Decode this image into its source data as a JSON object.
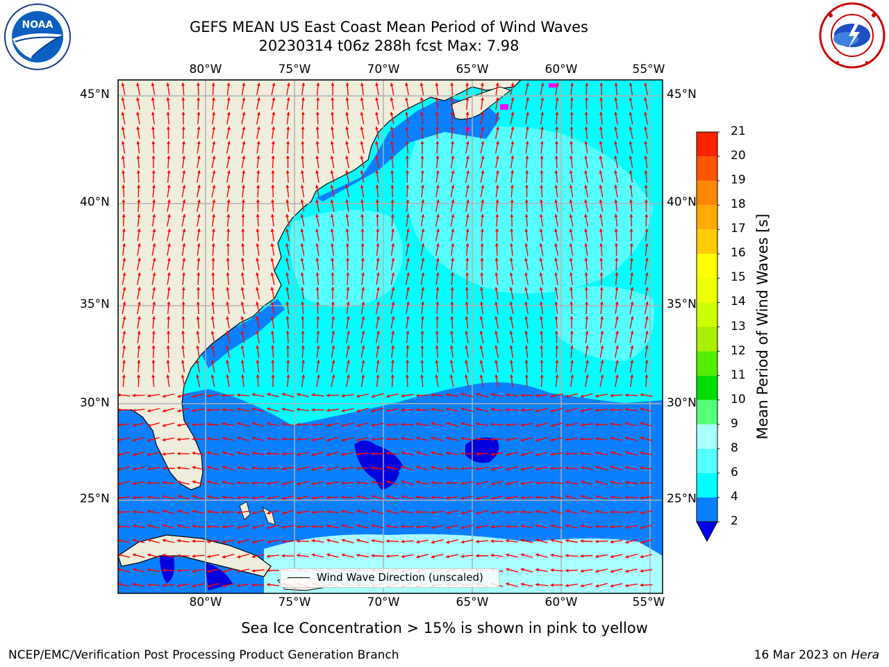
{
  "title_line1": "GEFS MEAN US East Coast Mean Period of Wind Waves",
  "title_line2": "20230314 t06z 288h fcst   Max: 7.98",
  "logos": {
    "left": {
      "icon": "noaa-logo-icon",
      "text": "NOAA"
    },
    "right": {
      "icon": "nws-logo-icon",
      "text": "NATIONAL WEATHER SERVICE"
    }
  },
  "lon_labels": [
    "80°W",
    "75°W",
    "70°W",
    "65°W",
    "60°W",
    "55°W"
  ],
  "lat_labels": [
    "45°N",
    "40°N",
    "35°N",
    "30°N",
    "25°N"
  ],
  "legend_label": "Wind Wave Direction (unscaled)",
  "colorbar": {
    "title": "Mean Period of Wind Waves [s]",
    "ticks": [
      "2",
      "4",
      "6",
      "8",
      "9",
      "10",
      "11",
      "12",
      "13",
      "14",
      "15",
      "16",
      "17",
      "18",
      "19",
      "20",
      "21"
    ],
    "colors": [
      "#0a80ff",
      "#00ffff",
      "#55ffff",
      "#aaffff",
      "#55ff7a",
      "#00dd00",
      "#55ee00",
      "#aaee00",
      "#ccff00",
      "#eeff00",
      "#ffff00",
      "#ffcc00",
      "#ffaa00",
      "#ff8800",
      "#ff5500",
      "#ff2200",
      "#ff0000"
    ],
    "extend_color": "#0000ee"
  },
  "colors": {
    "land": "#efeddc",
    "ocean_low": "#0a80ff",
    "ocean_mid": "#00ffff",
    "ocean_high": "#55ffff",
    "deep_low": "#0000dd",
    "arrow": "#ff0000",
    "ice": "#ff00ff"
  },
  "ice_note": "Sea Ice Concentration > 15% is shown in pink to yellow",
  "footer_left": "NCEP/EMC/Verification Post Processing Product Generation Branch",
  "footer_date": "16 Mar 2023 on ",
  "footer_machine": "Hera"
}
